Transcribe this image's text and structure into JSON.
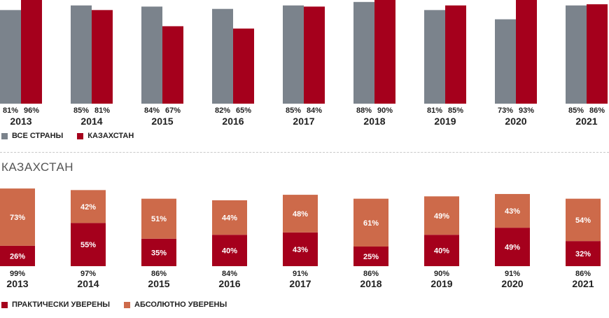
{
  "colors": {
    "all": "#7b838c",
    "kz": "#a5001c",
    "practical": "#a5001c",
    "absolute": "#cd6a4a"
  },
  "legend_top": {
    "all": "ВСЕ СТРАНЫ",
    "kz": "КАЗАХСТАН"
  },
  "section_title": "КАЗАХСТАН",
  "legend_bottom": {
    "practical": "ПРАКТИЧЕСКИ УВЕРЕНЫ",
    "absolute": "АБСОЛЮТНО УВЕРЕНЫ"
  },
  "chart_data": [
    {
      "type": "bar",
      "categories": [
        "2013",
        "2014",
        "2015",
        "2016",
        "2017",
        "2018",
        "2019",
        "2020",
        "2021"
      ],
      "series": [
        {
          "name": "ВСЕ СТРАНЫ",
          "values": [
            81,
            85,
            84,
            82,
            85,
            88,
            81,
            73,
            85
          ],
          "labels": [
            "81%",
            "85%",
            "84%",
            "82%",
            "85%",
            "88%",
            "81%",
            "73%",
            "85%"
          ]
        },
        {
          "name": "КАЗАХСТАН",
          "values": [
            96,
            81,
            67,
            65,
            84,
            90,
            85,
            93,
            86
          ],
          "labels": [
            "96%",
            "81%",
            "67%",
            "65%",
            "84%",
            "90%",
            "85%",
            "93%",
            "86%"
          ]
        }
      ],
      "legend": "bottom-left"
    },
    {
      "type": "bar",
      "stacked": true,
      "title": "КАЗАХСТАН",
      "categories": [
        "2013",
        "2014",
        "2015",
        "2016",
        "2017",
        "2018",
        "2019",
        "2020",
        "2021"
      ],
      "series": [
        {
          "name": "ПРАКТИЧЕСКИ УВЕРЕНЫ",
          "values": [
            26,
            55,
            35,
            40,
            43,
            25,
            40,
            49,
            32
          ],
          "labels": [
            "26%",
            "55%",
            "35%",
            "40%",
            "43%",
            "25%",
            "40%",
            "49%",
            "32%"
          ]
        },
        {
          "name": "АБСОЛЮТНО УВЕРЕНЫ",
          "values": [
            73,
            42,
            51,
            44,
            48,
            61,
            49,
            43,
            54
          ],
          "labels": [
            "73%",
            "42%",
            "51%",
            "44%",
            "48%",
            "61%",
            "49%",
            "43%",
            "54%"
          ]
        }
      ],
      "totals": [
        "99%",
        "97%",
        "86%",
        "84%",
        "91%",
        "86%",
        "90%",
        "91%",
        "86%"
      ],
      "legend": "bottom-left"
    }
  ]
}
